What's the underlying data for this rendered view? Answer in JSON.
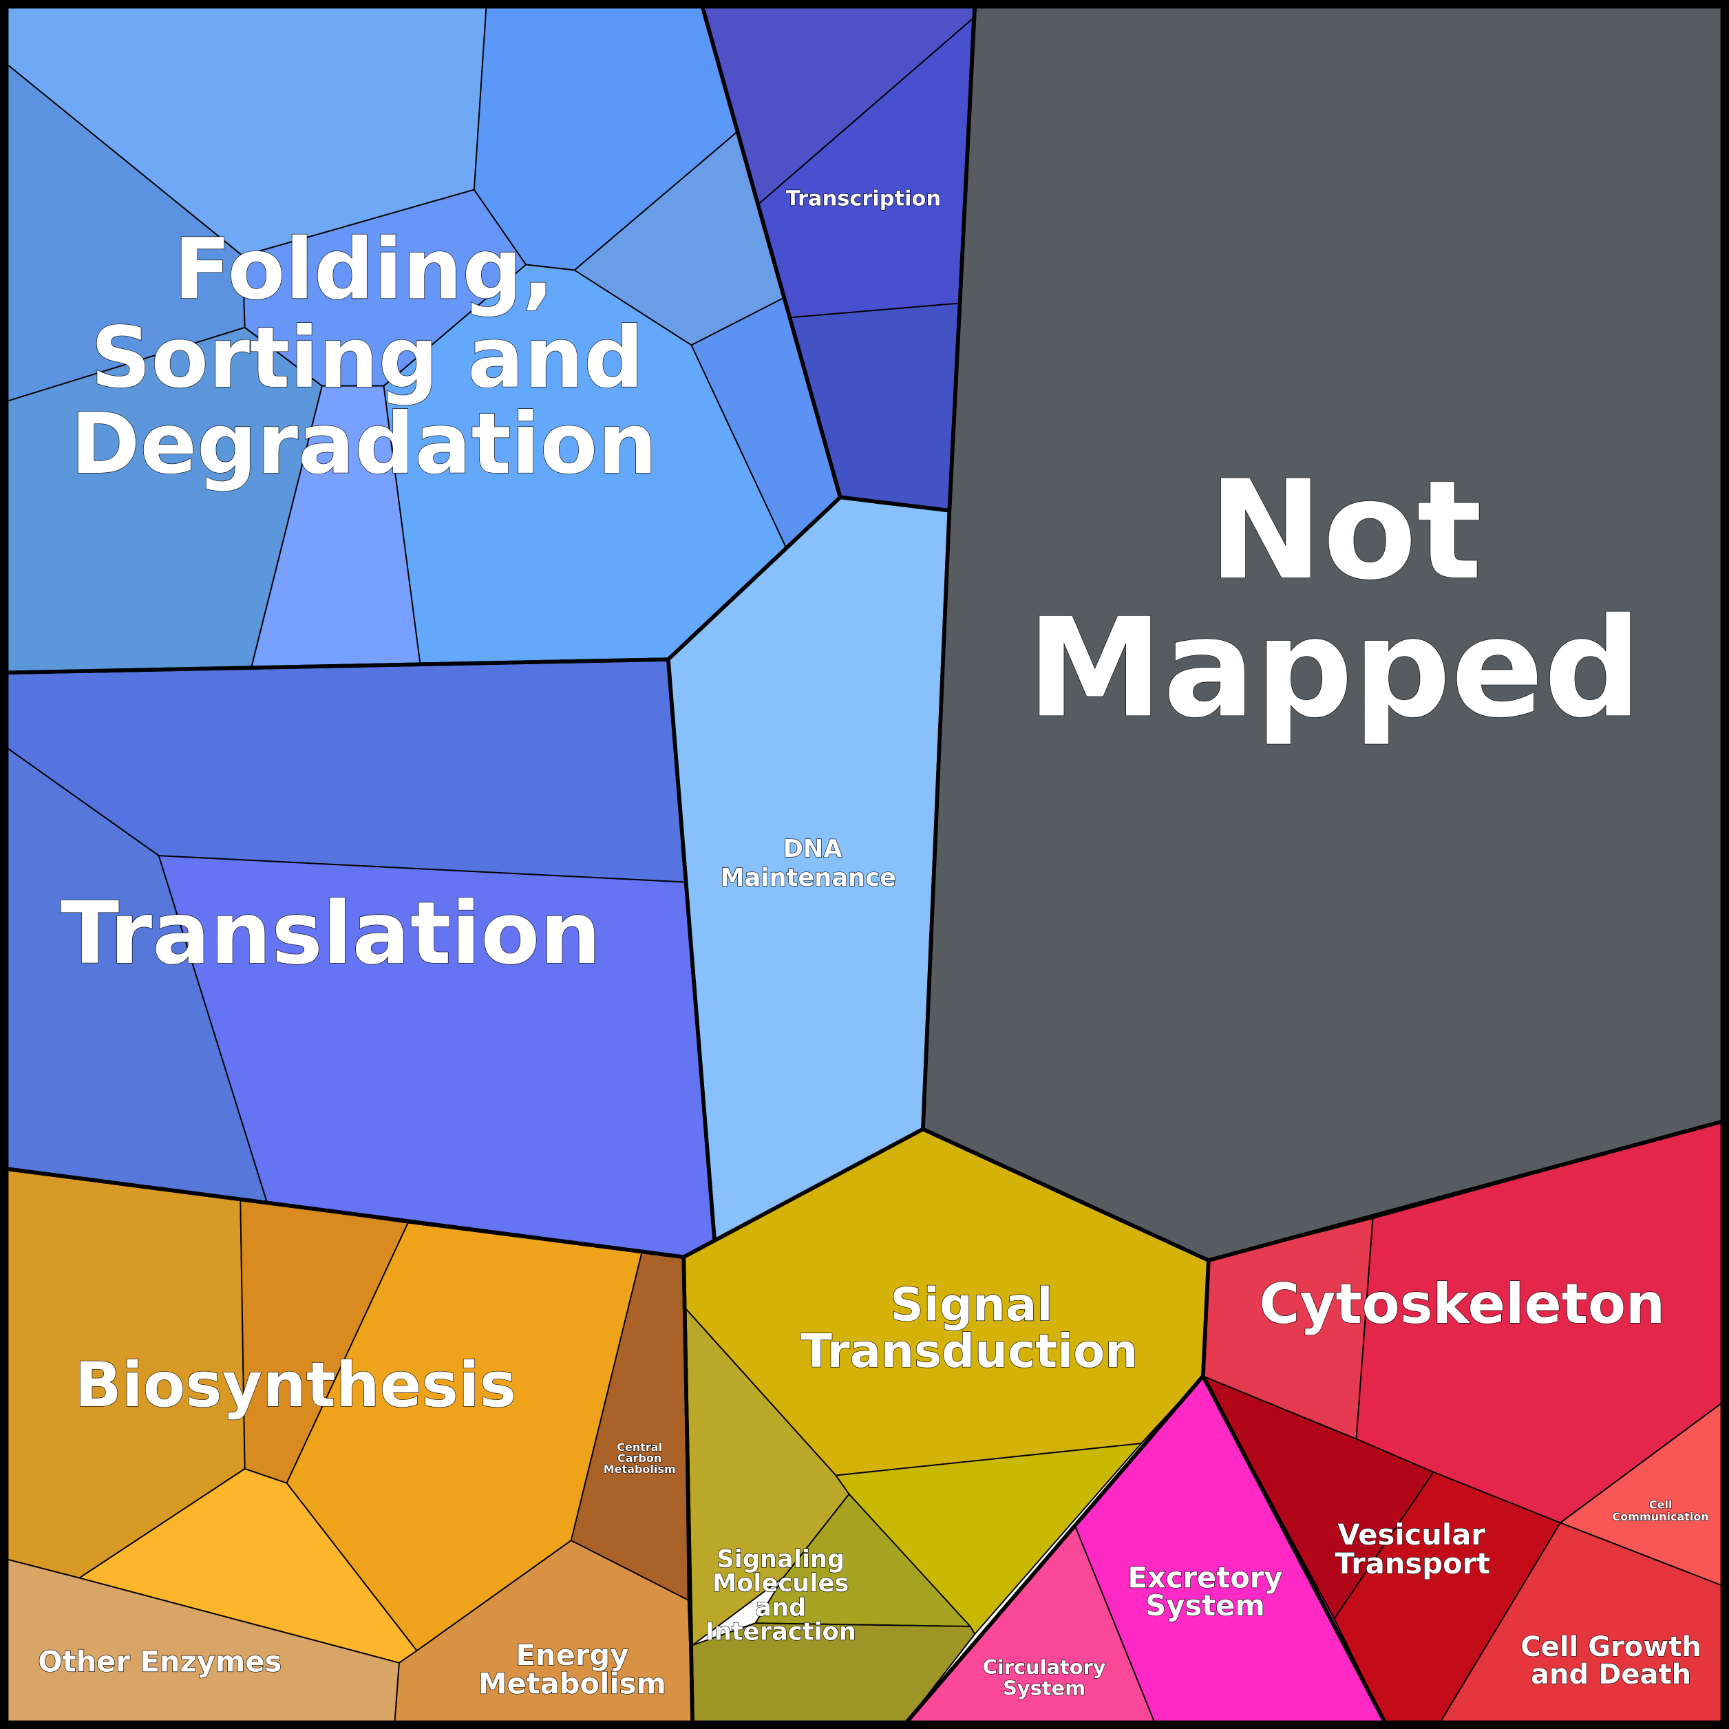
{
  "nodes": [
    {
      "lines": [
        "Folding,",
        "Sorting and",
        "Degradation"
      ]
    },
    {
      "lines": [
        "Not",
        "Mapped"
      ]
    },
    {
      "lines": [
        "Translation"
      ]
    },
    {
      "lines": [
        "Transcription"
      ]
    },
    {
      "lines": [
        "DNA",
        "Maintenance"
      ]
    },
    {
      "lines": [
        "Biosynthesis"
      ]
    },
    {
      "lines": [
        "Central",
        "Carbon",
        "Metabolism"
      ]
    },
    {
      "lines": [
        "Other Enzymes"
      ]
    },
    {
      "lines": [
        "Energy",
        "Metabolism"
      ]
    },
    {
      "lines": [
        "Signal",
        "Transduction"
      ]
    },
    {
      "lines": [
        "Signaling",
        "Molecules",
        "and",
        "Interaction"
      ]
    },
    {
      "lines": [
        "Cytoskeleton"
      ]
    },
    {
      "lines": [
        "Vesicular",
        "Transport"
      ]
    },
    {
      "lines": [
        "Cell",
        "Communication"
      ]
    },
    {
      "lines": [
        "Excretory",
        "System"
      ]
    },
    {
      "lines": [
        "Circulatory",
        "System"
      ]
    },
    {
      "lines": [
        "Cell Growth",
        "and Death"
      ]
    }
  ]
}
